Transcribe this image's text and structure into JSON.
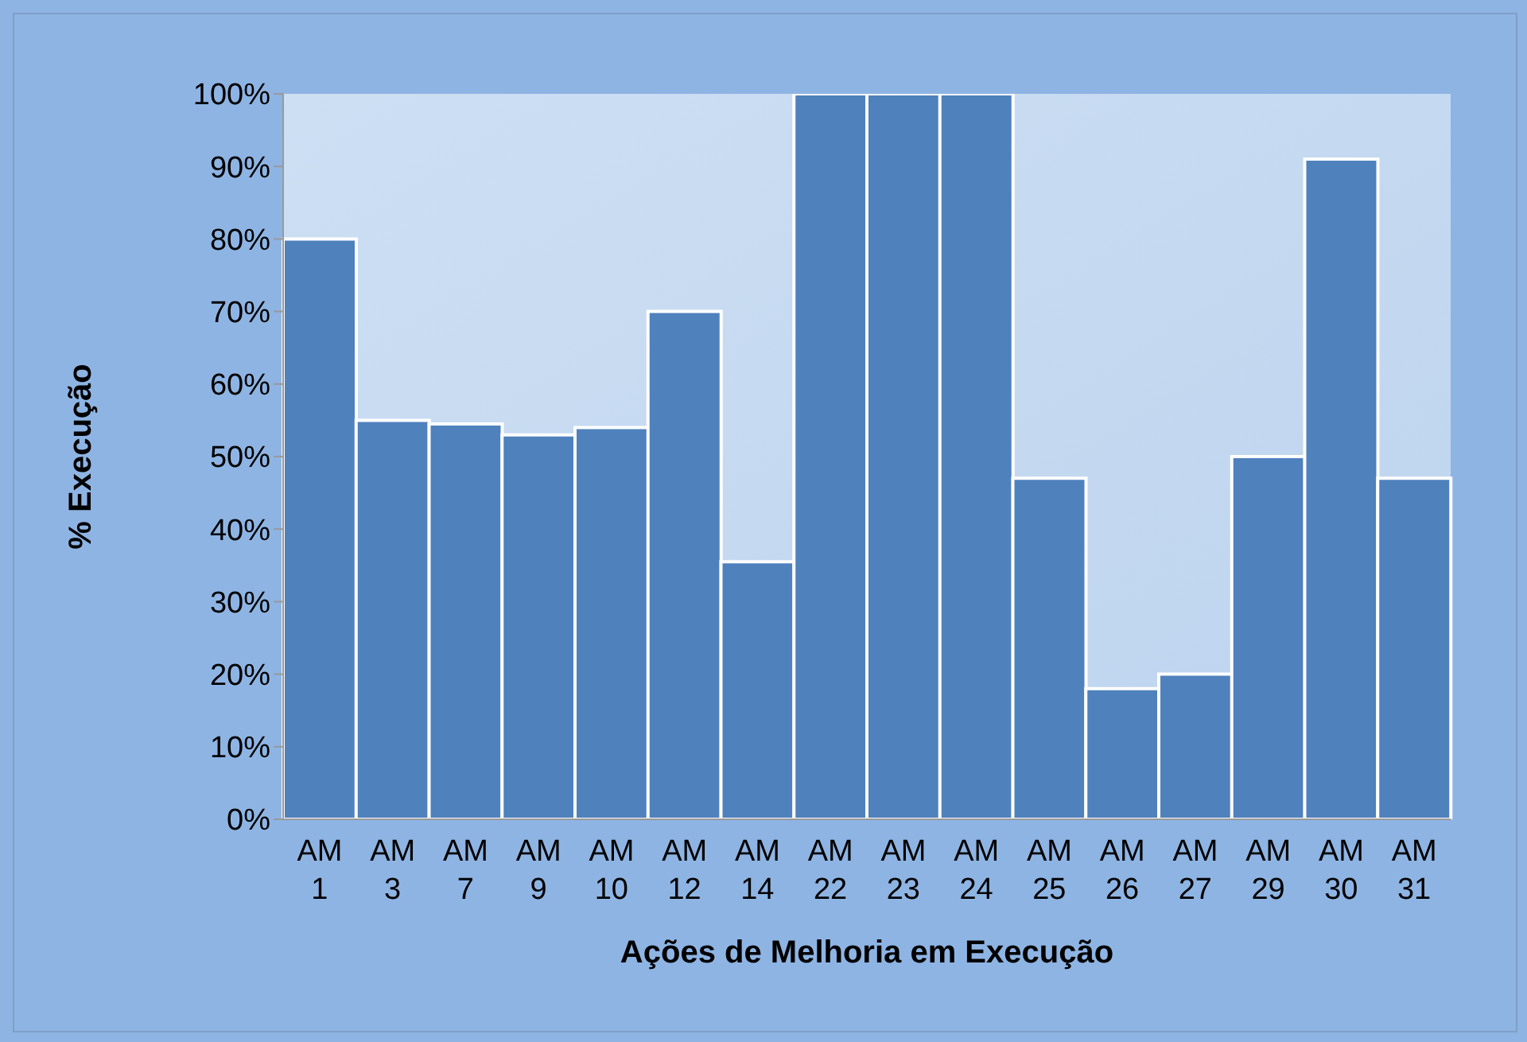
{
  "chart_data": {
    "type": "bar",
    "xlabel": "Ações de Melhoria em Execução",
    "ylabel": "% Execução",
    "categories": [
      "AM 1",
      "AM 3",
      "AM 7",
      "AM 9",
      "AM 10",
      "AM 12",
      "AM 14",
      "AM 22",
      "AM 23",
      "AM 24",
      "AM 25",
      "AM 26",
      "AM 27",
      "AM 29",
      "AM 30",
      "AM 31"
    ],
    "values": [
      80,
      55,
      54.5,
      53,
      54,
      70,
      35.5,
      100,
      100,
      100,
      47,
      18,
      20,
      50,
      91,
      47
    ],
    "color": "#4f81bd",
    "ylim": [
      0,
      100
    ],
    "yticks": [
      {
        "value": 0,
        "label": "0%"
      },
      {
        "value": 10,
        "label": "10%"
      },
      {
        "value": 20,
        "label": "20%"
      },
      {
        "value": 30,
        "label": "30%"
      },
      {
        "value": 40,
        "label": "40%"
      },
      {
        "value": 50,
        "label": "50%"
      },
      {
        "value": 60,
        "label": "60%"
      },
      {
        "value": 70,
        "label": "70%"
      },
      {
        "value": 80,
        "label": "80%"
      },
      {
        "value": 90,
        "label": "90%"
      },
      {
        "value": 100,
        "label": "100%"
      }
    ],
    "grid": false,
    "legend": false
  }
}
